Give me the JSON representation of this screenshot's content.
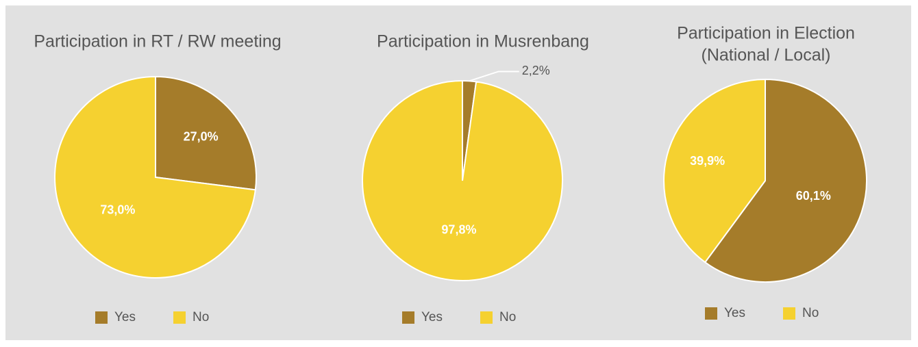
{
  "chart_data": [
    {
      "type": "pie",
      "title": [
        "Participation in RT / RW meeting"
      ],
      "labels": [
        "Yes",
        "No"
      ],
      "values": [
        27.0,
        73.0
      ],
      "value_labels": [
        "27,0%",
        "73,0%"
      ],
      "colors": [
        "#a57c2a",
        "#f5d130"
      ]
    },
    {
      "type": "pie",
      "title": [
        "Participation in Musrenbang"
      ],
      "labels": [
        "Yes",
        "No"
      ],
      "values": [
        2.2,
        97.8
      ],
      "value_labels": [
        "2,2%",
        "97,8%"
      ],
      "colors": [
        "#a57c2a",
        "#f5d130"
      ]
    },
    {
      "type": "pie",
      "title": [
        "Participation in Election",
        "(National / Local)"
      ],
      "labels": [
        "Yes",
        "No"
      ],
      "values": [
        60.1,
        39.9
      ],
      "value_labels": [
        "60,1%",
        "39,9%"
      ],
      "colors": [
        "#a57c2a",
        "#f5d130"
      ]
    }
  ]
}
